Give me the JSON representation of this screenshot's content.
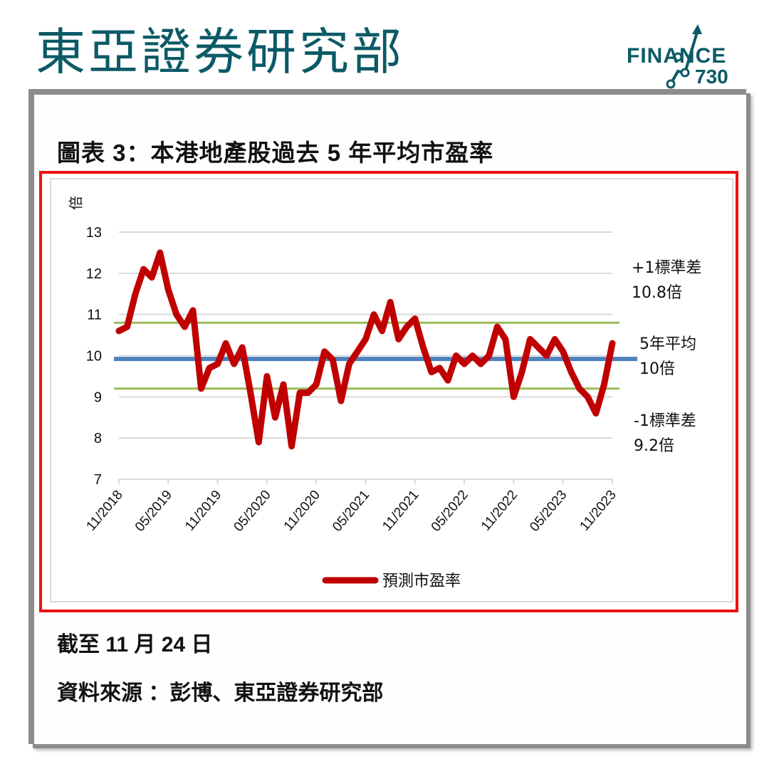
{
  "header": {
    "brand_title": "東亞證券研究部",
    "logo_text": "FINANCE",
    "logo_number": "730"
  },
  "figure": {
    "title": "圖表 3：本港地產股過去 5 年平均市盈率",
    "as_of": "截至 11 月 24 日",
    "source": "資料來源 ：彭博、東亞證券研究部"
  },
  "colors": {
    "brand": "#0b5a66",
    "series": "#c00000",
    "mean_line": "#4f81bd",
    "sd_lines": "#9bbb59",
    "highlight_border": "#ee1111",
    "gridline": "#d9d9d9"
  },
  "chart_data": {
    "type": "line",
    "title": "本港地產股過去 5 年平均市盈率",
    "ylabel": "倍",
    "xlabel": "",
    "ylim": [
      7,
      13
    ],
    "yticks": [
      7,
      8,
      9,
      10,
      11,
      12,
      13
    ],
    "grid": true,
    "legend_position": "bottom",
    "x_tick_labels": [
      "11/2018",
      "05/2019",
      "11/2019",
      "05/2020",
      "11/2020",
      "05/2021",
      "11/2021",
      "05/2022",
      "11/2022",
      "05/2023",
      "11/2023"
    ],
    "series": [
      {
        "name": "預測市盈率",
        "x": [
          "11/2018",
          "12/2018",
          "01/2019",
          "02/2019",
          "03/2019",
          "04/2019",
          "05/2019",
          "06/2019",
          "07/2019",
          "08/2019",
          "09/2019",
          "10/2019",
          "11/2019",
          "12/2019",
          "01/2020",
          "02/2020",
          "03/2020",
          "04/2020",
          "05/2020",
          "06/2020",
          "07/2020",
          "08/2020",
          "09/2020",
          "10/2020",
          "11/2020",
          "12/2020",
          "01/2021",
          "02/2021",
          "03/2021",
          "04/2021",
          "05/2021",
          "06/2021",
          "07/2021",
          "08/2021",
          "09/2021",
          "10/2021",
          "11/2021",
          "12/2021",
          "01/2022",
          "02/2022",
          "03/2022",
          "04/2022",
          "05/2022",
          "06/2022",
          "07/2022",
          "08/2022",
          "09/2022",
          "10/2022",
          "11/2022",
          "12/2022",
          "01/2023",
          "02/2023",
          "03/2023",
          "04/2023",
          "05/2023",
          "06/2023",
          "07/2023",
          "08/2023",
          "09/2023",
          "10/2023",
          "11/2023"
        ],
        "values": [
          10.6,
          10.7,
          11.5,
          12.1,
          11.9,
          12.5,
          11.6,
          11.0,
          10.7,
          11.1,
          9.2,
          9.7,
          9.8,
          10.3,
          9.8,
          10.2,
          9.1,
          7.9,
          9.5,
          8.5,
          9.3,
          7.8,
          9.1,
          9.1,
          9.3,
          10.1,
          9.9,
          8.9,
          9.8,
          10.1,
          10.4,
          11.0,
          10.6,
          11.3,
          10.4,
          10.7,
          10.9,
          10.2,
          9.6,
          9.7,
          9.4,
          10.0,
          9.8,
          10.0,
          9.8,
          10.0,
          10.7,
          10.4,
          9.0,
          9.6,
          10.4,
          10.2,
          10.0,
          10.4,
          10.1,
          9.6,
          9.2,
          9.0,
          8.6,
          9.3,
          10.3
        ]
      }
    ],
    "reference_lines": [
      {
        "name": "+1標準差",
        "value": 10.8,
        "label": "+1標準差\n10.8倍"
      },
      {
        "name": "5年平均",
        "value": 10.0,
        "label": "5年平均\n10倍"
      },
      {
        "name": "-1標準差",
        "value": 9.2,
        "label": "-1標準差\n9.2倍"
      }
    ],
    "annotations": [
      {
        "text": "+1標準差",
        "subtext": "10.8倍"
      },
      {
        "text": "5年平均",
        "subtext": "10倍"
      },
      {
        "text": "-1標準差",
        "subtext": "9.2倍"
      }
    ]
  },
  "chart_labels": {
    "y_unit": "倍",
    "plus_sd_line1": "+1標準差",
    "plus_sd_line2": "10.8倍",
    "mean_line1": "5年平均",
    "mean_line2": "10倍",
    "minus_sd_line1": "-1標準差",
    "minus_sd_line2": "9.2倍",
    "legend": "預測市盈率"
  }
}
